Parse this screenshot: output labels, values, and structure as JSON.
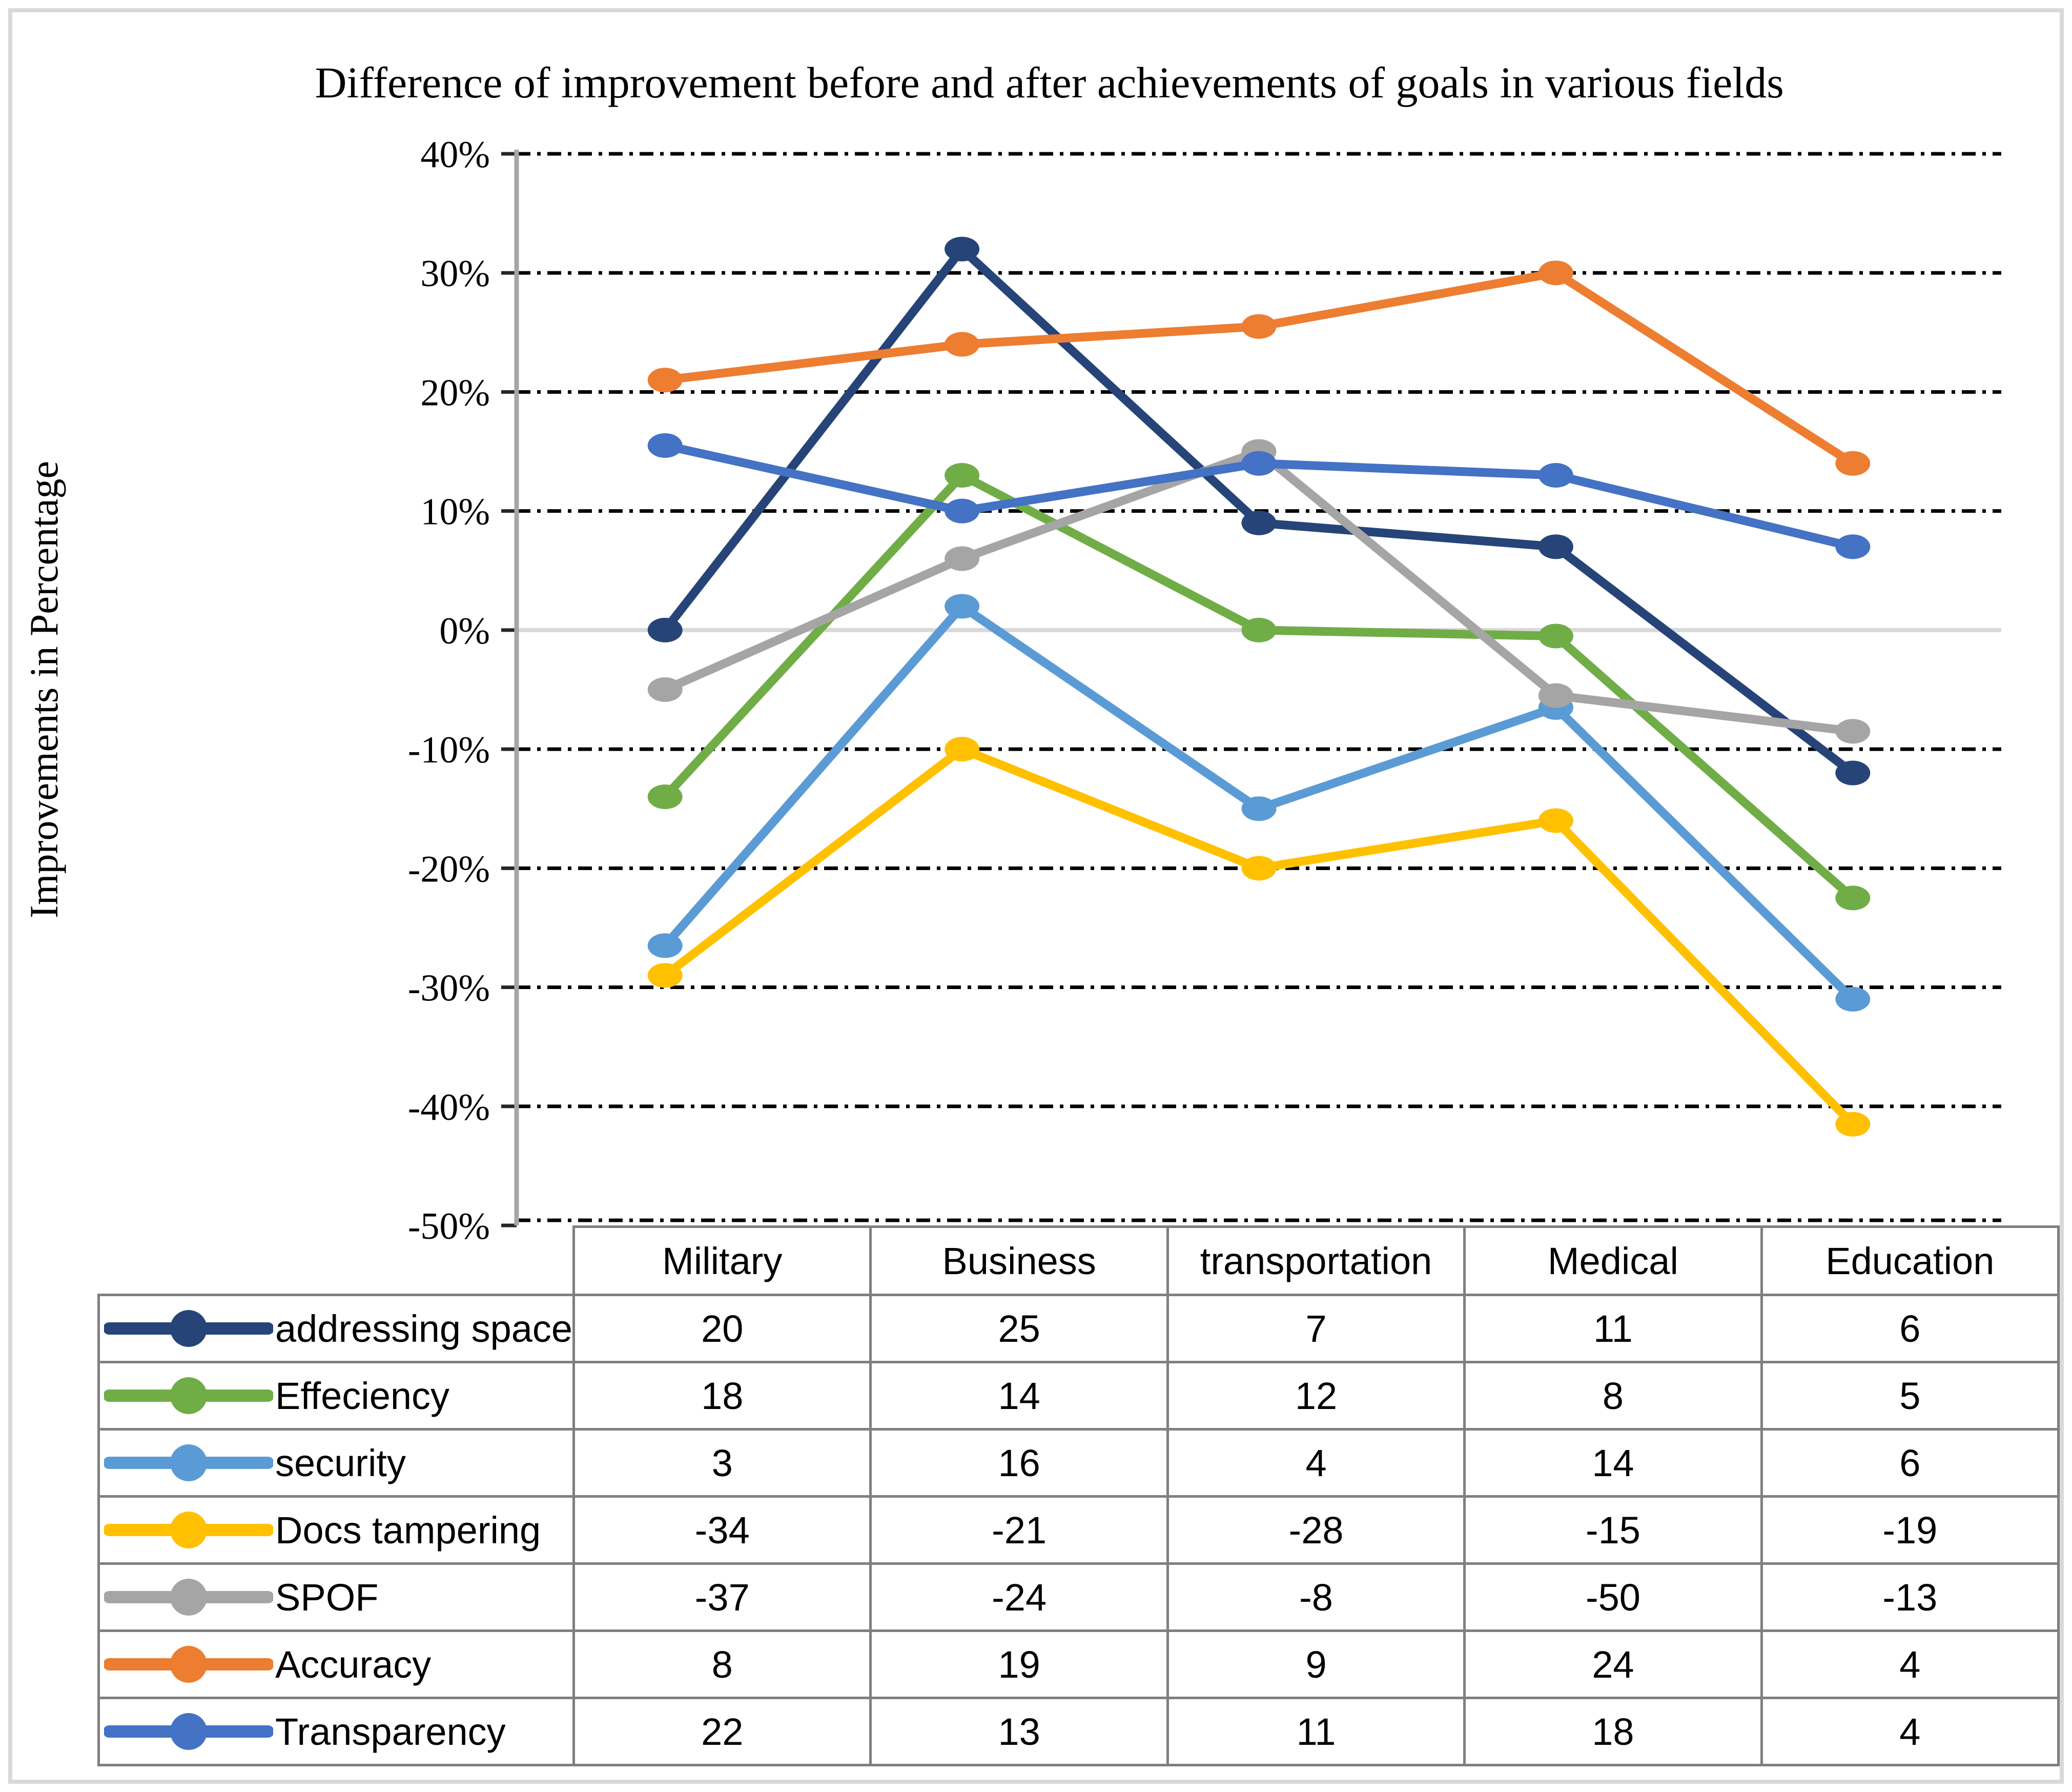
{
  "chart_data": {
    "type": "line",
    "title": "Difference of improvement before and after achievements of goals in various fields",
    "ylabel": "Improvements in Percentage",
    "categories": [
      "Military",
      "Business",
      "transportation",
      "Medical",
      "Education"
    ],
    "ylim": [
      -50,
      40
    ],
    "ytick_step": 10,
    "ytick_labels": [
      "40%",
      "30%",
      "20%",
      "10%",
      "0%",
      "-10%",
      "-20%",
      "-30%",
      "-40%",
      "-50%"
    ],
    "grid": "horizontal dash-dot black, zero line solid light gray",
    "legend_position": "table left column below chart",
    "colors": {
      "gridline": "#000000",
      "zero_line": "#D9D9D9",
      "axis_line": "#A6A6A6",
      "table_border": "#7F7F7F",
      "figure_border": "#D9D9D9"
    },
    "series": [
      {
        "name": "addressing space",
        "color": "#264478",
        "table_values": [
          20,
          25,
          7,
          11,
          6
        ],
        "line_values": [
          0,
          32,
          9,
          7,
          -12
        ]
      },
      {
        "name": "Effeciency",
        "color": "#70AD47",
        "table_values": [
          18,
          14,
          12,
          8,
          5
        ],
        "line_values": [
          -14,
          13,
          0,
          -0.5,
          -22.5
        ]
      },
      {
        "name": "security",
        "color": "#5B9BD5",
        "table_values": [
          3,
          16,
          4,
          14,
          6
        ],
        "line_values": [
          -26.5,
          2,
          -15,
          -6.5,
          -31
        ]
      },
      {
        "name": "Docs tampering",
        "color": "#FFC000",
        "table_values": [
          -34,
          -21,
          -28,
          -15,
          -19
        ],
        "line_values": [
          -29,
          -10,
          -20,
          -16,
          -41.5
        ]
      },
      {
        "name": "SPOF",
        "color": "#A5A5A5",
        "table_values": [
          -37,
          -24,
          -8,
          -50,
          -13
        ],
        "line_values": [
          -5,
          6,
          15,
          -5.5,
          -8.5
        ]
      },
      {
        "name": "Accuracy",
        "color": "#ED7D31",
        "table_values": [
          8,
          19,
          9,
          24,
          4
        ],
        "line_values": [
          21,
          24,
          25.5,
          30,
          14
        ]
      },
      {
        "name": "Transparency",
        "color": "#4472C4",
        "table_values": [
          22,
          13,
          11,
          18,
          4
        ],
        "line_values": [
          15.5,
          10,
          14,
          13,
          7
        ]
      }
    ]
  }
}
